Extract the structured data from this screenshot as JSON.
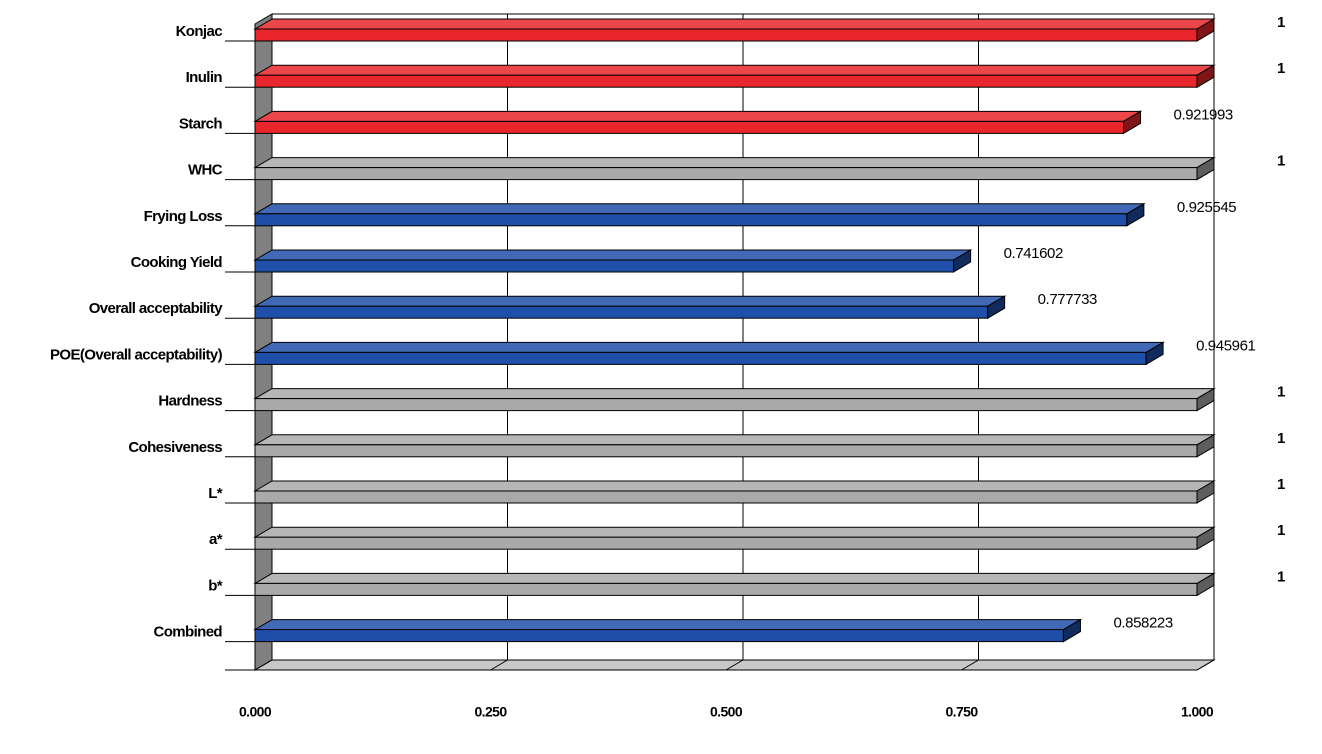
{
  "chart_data": {
    "type": "bar",
    "orientation": "horizontal",
    "categories": [
      "Konjac",
      "Inulin",
      "Starch",
      "WHC",
      "Frying Loss",
      "Cooking Yield",
      "Overall acceptability",
      "POE(Overall acceptability)",
      "Hardness",
      "Cohesiveness",
      "L*",
      "a*",
      "b*",
      "Combined"
    ],
    "values": [
      1,
      1,
      0.921993,
      1,
      0.925545,
      0.741602,
      0.777733,
      0.945961,
      1,
      1,
      1,
      1,
      1,
      0.858223
    ],
    "colors": [
      "#e8262b",
      "#e8262b",
      "#e8262b",
      "#a9a9a9",
      "#1f4fa8",
      "#1f4fa8",
      "#1f4fa8",
      "#1f4fa8",
      "#a9a9a9",
      "#a9a9a9",
      "#a9a9a9",
      "#a9a9a9",
      "#a9a9a9",
      "#1f4fa8"
    ],
    "xlim": [
      0,
      1
    ],
    "xticks": [
      {
        "value": 0,
        "label": "0.000"
      },
      {
        "value": 0.25,
        "label": "0.250"
      },
      {
        "value": 0.5,
        "label": "0.500"
      },
      {
        "value": 0.75,
        "label": "0.750"
      },
      {
        "value": 1,
        "label": "1.000"
      }
    ],
    "grid": true
  }
}
